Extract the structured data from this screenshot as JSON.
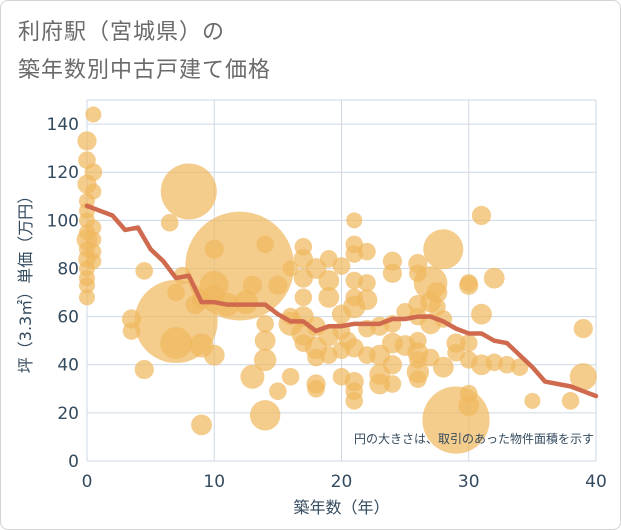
{
  "title_line1": "利府駅（宮城県）の",
  "title_line2": "築年数別中古戸建て価格",
  "colors": {
    "bubble": "#f0b860",
    "line": "#d06a4e",
    "grid": "#cfd9e4",
    "axis_text": "#344a5e",
    "title": "#6a6a6a"
  },
  "chart_data": {
    "type": "scatter",
    "xlabel": "築年数（年）",
    "ylabel": "坪（3.3㎡）単価（万円）",
    "xlim": [
      0,
      40
    ],
    "ylim": [
      0,
      150
    ],
    "xticks": [
      0,
      10,
      20,
      30,
      40
    ],
    "yticks": [
      0,
      20,
      40,
      60,
      80,
      100,
      120,
      140
    ],
    "grid": true,
    "note": "円の大きさは、取引のあった物件面積を示す",
    "bubbles": [
      {
        "x": 0,
        "y": 133,
        "s": 1.2
      },
      {
        "x": 0,
        "y": 125,
        "s": 1.1
      },
      {
        "x": 0,
        "y": 115,
        "s": 1.2
      },
      {
        "x": 0,
        "y": 108,
        "s": 1
      },
      {
        "x": 0,
        "y": 104,
        "s": 1
      },
      {
        "x": 0,
        "y": 100,
        "s": 1
      },
      {
        "x": 0,
        "y": 95,
        "s": 1
      },
      {
        "x": 0,
        "y": 92,
        "s": 1.3
      },
      {
        "x": 0,
        "y": 88,
        "s": 1
      },
      {
        "x": 0,
        "y": 84,
        "s": 1.1
      },
      {
        "x": 0,
        "y": 80,
        "s": 1
      },
      {
        "x": 0,
        "y": 76,
        "s": 1
      },
      {
        "x": 0,
        "y": 73,
        "s": 1
      },
      {
        "x": 0,
        "y": 68,
        "s": 1
      },
      {
        "x": 0.5,
        "y": 144,
        "s": 1
      },
      {
        "x": 0.5,
        "y": 120,
        "s": 1.1
      },
      {
        "x": 0.5,
        "y": 112,
        "s": 1
      },
      {
        "x": 0.5,
        "y": 97,
        "s": 1
      },
      {
        "x": 0.5,
        "y": 92,
        "s": 1
      },
      {
        "x": 0.5,
        "y": 87,
        "s": 1
      },
      {
        "x": 0.5,
        "y": 83,
        "s": 1
      },
      {
        "x": 3.5,
        "y": 59,
        "s": 1.2
      },
      {
        "x": 3.5,
        "y": 54,
        "s": 1.1
      },
      {
        "x": 4.5,
        "y": 79,
        "s": 1.1
      },
      {
        "x": 4.5,
        "y": 38,
        "s": 1.2
      },
      {
        "x": 6.5,
        "y": 99,
        "s": 1.1
      },
      {
        "x": 7,
        "y": 58,
        "s": 5.2
      },
      {
        "x": 7,
        "y": 49,
        "s": 2
      },
      {
        "x": 7,
        "y": 70,
        "s": 1.1
      },
      {
        "x": 7.5,
        "y": 77,
        "s": 1.1
      },
      {
        "x": 8,
        "y": 112,
        "s": 3.5
      },
      {
        "x": 8.5,
        "y": 65,
        "s": 1.2
      },
      {
        "x": 9,
        "y": 67,
        "s": 1.2
      },
      {
        "x": 9,
        "y": 48,
        "s": 1.5
      },
      {
        "x": 9,
        "y": 15,
        "s": 1.3
      },
      {
        "x": 10,
        "y": 88,
        "s": 1.2
      },
      {
        "x": 10,
        "y": 73,
        "s": 1.8
      },
      {
        "x": 10,
        "y": 69,
        "s": 1.3
      },
      {
        "x": 10,
        "y": 44,
        "s": 1.3
      },
      {
        "x": 11,
        "y": 65,
        "s": 1.5
      },
      {
        "x": 12,
        "y": 81,
        "s": 6.8
      },
      {
        "x": 12.5,
        "y": 66,
        "s": 1.5
      },
      {
        "x": 13,
        "y": 73,
        "s": 1.2
      },
      {
        "x": 13,
        "y": 35,
        "s": 1.5
      },
      {
        "x": 14,
        "y": 90,
        "s": 1.1
      },
      {
        "x": 14,
        "y": 57,
        "s": 1.1
      },
      {
        "x": 14,
        "y": 50,
        "s": 1.3
      },
      {
        "x": 14,
        "y": 42,
        "s": 1.4
      },
      {
        "x": 14,
        "y": 19,
        "s": 1.9
      },
      {
        "x": 15,
        "y": 73,
        "s": 1.2
      },
      {
        "x": 15,
        "y": 29,
        "s": 1.1
      },
      {
        "x": 16,
        "y": 80,
        "s": 1
      },
      {
        "x": 16,
        "y": 60,
        "s": 1.1
      },
      {
        "x": 16,
        "y": 57,
        "s": 1.5
      },
      {
        "x": 16,
        "y": 35,
        "s": 1.1
      },
      {
        "x": 17,
        "y": 89,
        "s": 1.1
      },
      {
        "x": 17,
        "y": 84,
        "s": 1.2
      },
      {
        "x": 17,
        "y": 76,
        "s": 1.2
      },
      {
        "x": 17,
        "y": 68,
        "s": 1.1
      },
      {
        "x": 17,
        "y": 60,
        "s": 1.3
      },
      {
        "x": 17,
        "y": 53,
        "s": 1.5
      },
      {
        "x": 17,
        "y": 49,
        "s": 1.1
      },
      {
        "x": 18,
        "y": 80,
        "s": 1.3
      },
      {
        "x": 18,
        "y": 56,
        "s": 1.2
      },
      {
        "x": 18,
        "y": 47,
        "s": 1.4
      },
      {
        "x": 18,
        "y": 43,
        "s": 1.1
      },
      {
        "x": 18,
        "y": 32,
        "s": 1.2
      },
      {
        "x": 18,
        "y": 30,
        "s": 1.1
      },
      {
        "x": 19,
        "y": 84,
        "s": 1.1
      },
      {
        "x": 19,
        "y": 75,
        "s": 1.3
      },
      {
        "x": 19,
        "y": 68,
        "s": 1.3
      },
      {
        "x": 19,
        "y": 52,
        "s": 1.3
      },
      {
        "x": 19,
        "y": 44,
        "s": 1.1
      },
      {
        "x": 20,
        "y": 81,
        "s": 1.1
      },
      {
        "x": 20,
        "y": 61,
        "s": 1.2
      },
      {
        "x": 20,
        "y": 54,
        "s": 1.1
      },
      {
        "x": 20,
        "y": 46,
        "s": 1.1
      },
      {
        "x": 20,
        "y": 35,
        "s": 1.1
      },
      {
        "x": 20.5,
        "y": 50,
        "s": 1.1
      },
      {
        "x": 21,
        "y": 100,
        "s": 1
      },
      {
        "x": 21,
        "y": 90,
        "s": 1.1
      },
      {
        "x": 21,
        "y": 86,
        "s": 1.1
      },
      {
        "x": 21,
        "y": 75,
        "s": 1.1
      },
      {
        "x": 21,
        "y": 68,
        "s": 1.1
      },
      {
        "x": 21,
        "y": 64,
        "s": 1.4
      },
      {
        "x": 21,
        "y": 47,
        "s": 1.2
      },
      {
        "x": 21,
        "y": 33,
        "s": 1.2
      },
      {
        "x": 21,
        "y": 29,
        "s": 1.1
      },
      {
        "x": 21,
        "y": 25,
        "s": 1.1
      },
      {
        "x": 22,
        "y": 87,
        "s": 1.1
      },
      {
        "x": 22,
        "y": 74,
        "s": 1.1
      },
      {
        "x": 22,
        "y": 67,
        "s": 1.3
      },
      {
        "x": 22,
        "y": 55,
        "s": 1.1
      },
      {
        "x": 22,
        "y": 44,
        "s": 1.1
      },
      {
        "x": 23,
        "y": 56,
        "s": 1.2
      },
      {
        "x": 23,
        "y": 44,
        "s": 1.3
      },
      {
        "x": 23,
        "y": 36,
        "s": 1.3
      },
      {
        "x": 23,
        "y": 32,
        "s": 1.3
      },
      {
        "x": 24,
        "y": 83,
        "s": 1.2
      },
      {
        "x": 24,
        "y": 78,
        "s": 1.2
      },
      {
        "x": 24,
        "y": 57,
        "s": 1.1
      },
      {
        "x": 24,
        "y": 49,
        "s": 1.3
      },
      {
        "x": 24,
        "y": 40,
        "s": 1.2
      },
      {
        "x": 24,
        "y": 32,
        "s": 1.1
      },
      {
        "x": 25,
        "y": 62,
        "s": 1.1
      },
      {
        "x": 25,
        "y": 48,
        "s": 1.3
      },
      {
        "x": 26,
        "y": 82,
        "s": 1.2
      },
      {
        "x": 26,
        "y": 78,
        "s": 1.1
      },
      {
        "x": 26,
        "y": 65,
        "s": 1.2
      },
      {
        "x": 26,
        "y": 60,
        "s": 1.1
      },
      {
        "x": 26,
        "y": 50,
        "s": 1.1
      },
      {
        "x": 26,
        "y": 45,
        "s": 1.3
      },
      {
        "x": 26,
        "y": 42,
        "s": 1.1
      },
      {
        "x": 26,
        "y": 37,
        "s": 1.4
      },
      {
        "x": 26,
        "y": 34,
        "s": 1.1
      },
      {
        "x": 27,
        "y": 74,
        "s": 2.1
      },
      {
        "x": 27,
        "y": 66,
        "s": 1.3
      },
      {
        "x": 27,
        "y": 57,
        "s": 1.3
      },
      {
        "x": 27,
        "y": 43,
        "s": 1.1
      },
      {
        "x": 27.5,
        "y": 70,
        "s": 1.3
      },
      {
        "x": 27.5,
        "y": 64,
        "s": 1.1
      },
      {
        "x": 28,
        "y": 88,
        "s": 2.5
      },
      {
        "x": 28,
        "y": 59,
        "s": 1.1
      },
      {
        "x": 28,
        "y": 39,
        "s": 1.3
      },
      {
        "x": 29,
        "y": 49,
        "s": 1.2
      },
      {
        "x": 29,
        "y": 45,
        "s": 1.1
      },
      {
        "x": 29,
        "y": 17,
        "s": 4.2
      },
      {
        "x": 30,
        "y": 74,
        "s": 1.1
      },
      {
        "x": 30,
        "y": 73,
        "s": 1.2
      },
      {
        "x": 30,
        "y": 49,
        "s": 1.1
      },
      {
        "x": 30,
        "y": 42,
        "s": 1.1
      },
      {
        "x": 30,
        "y": 28,
        "s": 1.1
      },
      {
        "x": 30,
        "y": 23,
        "s": 1.3
      },
      {
        "x": 31,
        "y": 102,
        "s": 1.2
      },
      {
        "x": 31,
        "y": 61,
        "s": 1.3
      },
      {
        "x": 31,
        "y": 40,
        "s": 1.3
      },
      {
        "x": 32,
        "y": 76,
        "s": 1.3
      },
      {
        "x": 32,
        "y": 41,
        "s": 1.1
      },
      {
        "x": 33,
        "y": 40,
        "s": 1.1
      },
      {
        "x": 34,
        "y": 39,
        "s": 1.1
      },
      {
        "x": 35,
        "y": 25,
        "s": 1
      },
      {
        "x": 38,
        "y": 25,
        "s": 1.1
      },
      {
        "x": 39,
        "y": 55,
        "s": 1.2
      },
      {
        "x": 39,
        "y": 35,
        "s": 1.7
      }
    ],
    "trend": {
      "x": [
        0,
        1,
        2,
        3,
        4,
        5,
        6,
        7,
        8,
        9,
        10,
        11,
        12,
        13,
        14,
        15,
        16,
        17,
        18,
        19,
        20,
        21,
        22,
        23,
        24,
        25,
        26,
        27,
        28,
        29,
        30,
        31,
        32,
        33,
        34,
        35,
        36,
        37,
        38,
        39,
        40
      ],
      "y": [
        106,
        104,
        102,
        96,
        97,
        88,
        83,
        76,
        77,
        66,
        66,
        65,
        65,
        65,
        65,
        61,
        58,
        58,
        54,
        56,
        56,
        57,
        57,
        57,
        59,
        59,
        60,
        60,
        58,
        55,
        53,
        53,
        50,
        49,
        44,
        39,
        33,
        32,
        31,
        29,
        27
      ]
    }
  }
}
